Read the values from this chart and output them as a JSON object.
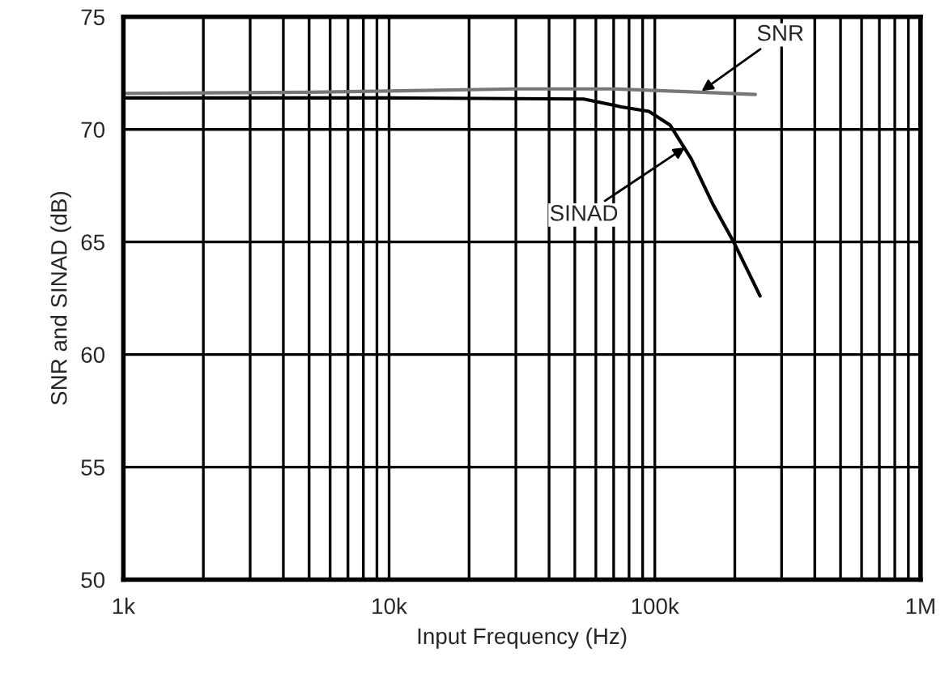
{
  "chart_data": {
    "type": "line",
    "xlabel": "Input Frequency (Hz)",
    "ylabel": "SNR and SINAD (dB)",
    "log": "x",
    "grid": true,
    "legend": false,
    "xlim": [
      1000,
      1000000
    ],
    "xticks": [
      {
        "value": 1000,
        "label": "1k"
      },
      {
        "value": 10000,
        "label": "10k"
      },
      {
        "value": 100000,
        "label": "100k"
      },
      {
        "value": 1000000,
        "label": "1M"
      }
    ],
    "ylim": [
      50,
      75
    ],
    "yticks": [
      50,
      55,
      60,
      65,
      70,
      75
    ],
    "series": [
      {
        "color": "#777777",
        "x": [
          1000,
          5000,
          30000,
          70000,
          150000,
          239000
        ],
        "values": [
          71.6,
          71.65,
          71.8,
          71.8,
          71.65,
          71.55
        ]
      },
      {
        "color": "#000000",
        "x": [
          1000,
          10000,
          54000,
          75000,
          95000,
          114000,
          137000,
          165000,
          198000,
          249000
        ],
        "values": [
          71.4,
          71.4,
          71.35,
          71.0,
          70.8,
          70.2,
          68.7,
          66.7,
          65.0,
          62.6
        ]
      }
    ],
    "annotations": [
      {
        "text": "SNR",
        "x": 150000,
        "y": 71.7
      },
      {
        "text": "SINAD",
        "x": 130000,
        "y": 69.2
      }
    ]
  }
}
